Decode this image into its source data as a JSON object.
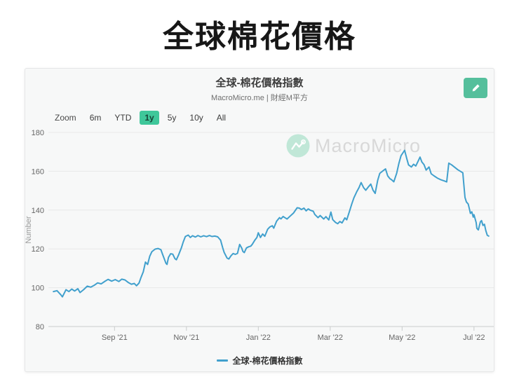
{
  "page": {
    "title": "全球棉花價格"
  },
  "card": {
    "title": "全球-棉花價格指數",
    "subtitle": "MacroMicro.me | 財經M平方",
    "watermark": "MacroMicro"
  },
  "toolbar": {
    "zoom_label": "Zoom",
    "items": [
      {
        "label": "6m",
        "selected": false
      },
      {
        "label": "YTD",
        "selected": false
      },
      {
        "label": "1y",
        "selected": true
      },
      {
        "label": "5y",
        "selected": false
      },
      {
        "label": "10y",
        "selected": false
      },
      {
        "label": "All",
        "selected": false
      }
    ]
  },
  "legend": {
    "label": "全球-棉花價格指數",
    "color": "#41a0cd"
  },
  "theme": {
    "accent_teal_button": "#55bf9c",
    "selected_range_bg": "#3fc79a",
    "line_blue": "#41a0cd",
    "watermark_text_gray": "#d6d6d6",
    "watermark_badge_teal": "#bce6d5",
    "grid_gray": "#e8e8e8"
  },
  "chart_data": {
    "type": "line",
    "title": "全球-棉花價格指數",
    "ylabel": "Number",
    "y_ticks": [
      80,
      100,
      120,
      140,
      160,
      180
    ],
    "ylim": [
      80,
      180
    ],
    "x_unit": "months since 2021-07-01",
    "xlim": [
      0.16,
      12.55
    ],
    "x_ticks": [
      {
        "m": 2,
        "label": "Sep '21"
      },
      {
        "m": 4,
        "label": "Nov '21"
      },
      {
        "m": 6,
        "label": "Jan '22"
      },
      {
        "m": 8,
        "label": "Mar '22"
      },
      {
        "m": 10,
        "label": "May '22"
      },
      {
        "m": 12,
        "label": "Jul '22"
      }
    ],
    "grid": "horizontal",
    "legend_position": "bottom",
    "series": [
      {
        "name": "全球-棉花價格指數",
        "color": "#41a0cd",
        "points": [
          [
            0.3,
            98.0
          ],
          [
            0.4,
            98.5
          ],
          [
            0.5,
            96.5
          ],
          [
            0.55,
            95.3
          ],
          [
            0.65,
            99.0
          ],
          [
            0.73,
            98.0
          ],
          [
            0.81,
            99.3
          ],
          [
            0.89,
            98.3
          ],
          [
            0.98,
            99.5
          ],
          [
            1.04,
            97.5
          ],
          [
            1.14,
            99.0
          ],
          [
            1.24,
            100.8
          ],
          [
            1.34,
            100.3
          ],
          [
            1.43,
            101.2
          ],
          [
            1.53,
            102.5
          ],
          [
            1.63,
            102.0
          ],
          [
            1.73,
            103.3
          ],
          [
            1.82,
            104.3
          ],
          [
            1.92,
            103.4
          ],
          [
            2.02,
            104.2
          ],
          [
            2.12,
            103.2
          ],
          [
            2.2,
            104.4
          ],
          [
            2.29,
            104.0
          ],
          [
            2.39,
            102.6
          ],
          [
            2.47,
            101.8
          ],
          [
            2.55,
            102.2
          ],
          [
            2.61,
            101.0
          ],
          [
            2.68,
            102.4
          ],
          [
            2.74,
            105.4
          ],
          [
            2.8,
            108.2
          ],
          [
            2.86,
            113.2
          ],
          [
            2.92,
            112.0
          ],
          [
            2.98,
            116.2
          ],
          [
            3.04,
            118.6
          ],
          [
            3.13,
            119.9
          ],
          [
            3.21,
            120.2
          ],
          [
            3.29,
            119.6
          ],
          [
            3.33,
            117.5
          ],
          [
            3.43,
            112.6
          ],
          [
            3.46,
            112.0
          ],
          [
            3.5,
            115.6
          ],
          [
            3.56,
            117.5
          ],
          [
            3.62,
            117.3
          ],
          [
            3.68,
            115.0
          ],
          [
            3.72,
            114.4
          ],
          [
            3.78,
            116.8
          ],
          [
            3.86,
            120.5
          ],
          [
            3.91,
            123.5
          ],
          [
            3.97,
            126.4
          ],
          [
            4.05,
            127.1
          ],
          [
            4.11,
            125.9
          ],
          [
            4.17,
            126.8
          ],
          [
            4.25,
            126.1
          ],
          [
            4.32,
            126.9
          ],
          [
            4.4,
            126.2
          ],
          [
            4.48,
            126.8
          ],
          [
            4.56,
            126.3
          ],
          [
            4.64,
            126.9
          ],
          [
            4.71,
            126.4
          ],
          [
            4.79,
            126.6
          ],
          [
            4.87,
            126.2
          ],
          [
            4.95,
            124.5
          ],
          [
            5.01,
            120.5
          ],
          [
            5.05,
            118.2
          ],
          [
            5.13,
            115.3
          ],
          [
            5.18,
            114.8
          ],
          [
            5.24,
            116.5
          ],
          [
            5.3,
            117.6
          ],
          [
            5.36,
            117.2
          ],
          [
            5.42,
            117.7
          ],
          [
            5.48,
            122.3
          ],
          [
            5.54,
            120.4
          ],
          [
            5.57,
            118.7
          ],
          [
            5.61,
            118.1
          ],
          [
            5.67,
            120.5
          ],
          [
            5.73,
            121.1
          ],
          [
            5.79,
            121.4
          ],
          [
            5.83,
            122.3
          ],
          [
            5.91,
            124.7
          ],
          [
            5.96,
            125.9
          ],
          [
            6.0,
            128.3
          ],
          [
            6.06,
            125.9
          ],
          [
            6.12,
            127.7
          ],
          [
            6.18,
            126.5
          ],
          [
            6.26,
            130.1
          ],
          [
            6.32,
            131.3
          ],
          [
            6.39,
            131.9
          ],
          [
            6.43,
            130.7
          ],
          [
            6.51,
            134.3
          ],
          [
            6.59,
            136.1
          ],
          [
            6.63,
            135.5
          ],
          [
            6.69,
            136.7
          ],
          [
            6.73,
            136.2
          ],
          [
            6.8,
            135.4
          ],
          [
            6.88,
            136.8
          ],
          [
            6.98,
            138.5
          ],
          [
            7.08,
            141.2
          ],
          [
            7.14,
            141.0
          ],
          [
            7.2,
            140.3
          ],
          [
            7.27,
            141.0
          ],
          [
            7.33,
            139.6
          ],
          [
            7.39,
            140.6
          ],
          [
            7.45,
            139.9
          ],
          [
            7.53,
            139.4
          ],
          [
            7.57,
            137.8
          ],
          [
            7.66,
            136.1
          ],
          [
            7.72,
            137.2
          ],
          [
            7.82,
            135.4
          ],
          [
            7.88,
            136.6
          ],
          [
            7.96,
            134.9
          ],
          [
            8.02,
            139.0
          ],
          [
            8.07,
            135.1
          ],
          [
            8.15,
            133.6
          ],
          [
            8.21,
            133.0
          ],
          [
            8.27,
            134.1
          ],
          [
            8.33,
            133.4
          ],
          [
            8.41,
            136.0
          ],
          [
            8.46,
            135.0
          ],
          [
            8.54,
            139.6
          ],
          [
            8.6,
            143.2
          ],
          [
            8.66,
            146.3
          ],
          [
            8.74,
            149.5
          ],
          [
            8.8,
            151.5
          ],
          [
            8.86,
            154.2
          ],
          [
            8.93,
            151.5
          ],
          [
            8.99,
            150.2
          ],
          [
            9.07,
            152.1
          ],
          [
            9.13,
            153.4
          ],
          [
            9.19,
            150.3
          ],
          [
            9.25,
            148.6
          ],
          [
            9.32,
            155.3
          ],
          [
            9.38,
            158.9
          ],
          [
            9.46,
            160.1
          ],
          [
            9.54,
            161.2
          ],
          [
            9.6,
            157.6
          ],
          [
            9.66,
            156.2
          ],
          [
            9.71,
            155.6
          ],
          [
            9.77,
            154.6
          ],
          [
            9.85,
            159.0
          ],
          [
            9.91,
            164.0
          ],
          [
            9.97,
            168.0
          ],
          [
            10.07,
            170.8
          ],
          [
            10.13,
            166.5
          ],
          [
            10.18,
            163.3
          ],
          [
            10.26,
            162.2
          ],
          [
            10.32,
            163.6
          ],
          [
            10.38,
            162.7
          ],
          [
            10.44,
            165.0
          ],
          [
            10.5,
            167.3
          ],
          [
            10.55,
            164.8
          ],
          [
            10.61,
            163.4
          ],
          [
            10.67,
            160.6
          ],
          [
            10.75,
            162.2
          ],
          [
            10.81,
            158.7
          ],
          [
            10.89,
            157.6
          ],
          [
            10.98,
            156.5
          ],
          [
            11.08,
            155.6
          ],
          [
            11.18,
            155.0
          ],
          [
            11.24,
            154.5
          ],
          [
            11.3,
            164.2
          ],
          [
            11.38,
            163.3
          ],
          [
            11.47,
            162.0
          ],
          [
            11.55,
            160.8
          ],
          [
            11.63,
            159.9
          ],
          [
            11.69,
            159.2
          ],
          [
            11.71,
            155.0
          ],
          [
            11.75,
            146.5
          ],
          [
            11.79,
            144.2
          ],
          [
            11.84,
            143.1
          ],
          [
            11.88,
            140.0
          ],
          [
            11.9,
            138.3
          ],
          [
            11.94,
            139.1
          ],
          [
            11.98,
            136.4
          ],
          [
            12.0,
            137.6
          ],
          [
            12.06,
            133.6
          ],
          [
            12.08,
            130.6
          ],
          [
            12.12,
            129.8
          ],
          [
            12.18,
            134.0
          ],
          [
            12.21,
            134.6
          ],
          [
            12.25,
            132.1
          ],
          [
            12.29,
            132.7
          ],
          [
            12.33,
            129.4
          ],
          [
            12.37,
            127.0
          ],
          [
            12.41,
            126.6
          ]
        ]
      }
    ]
  }
}
